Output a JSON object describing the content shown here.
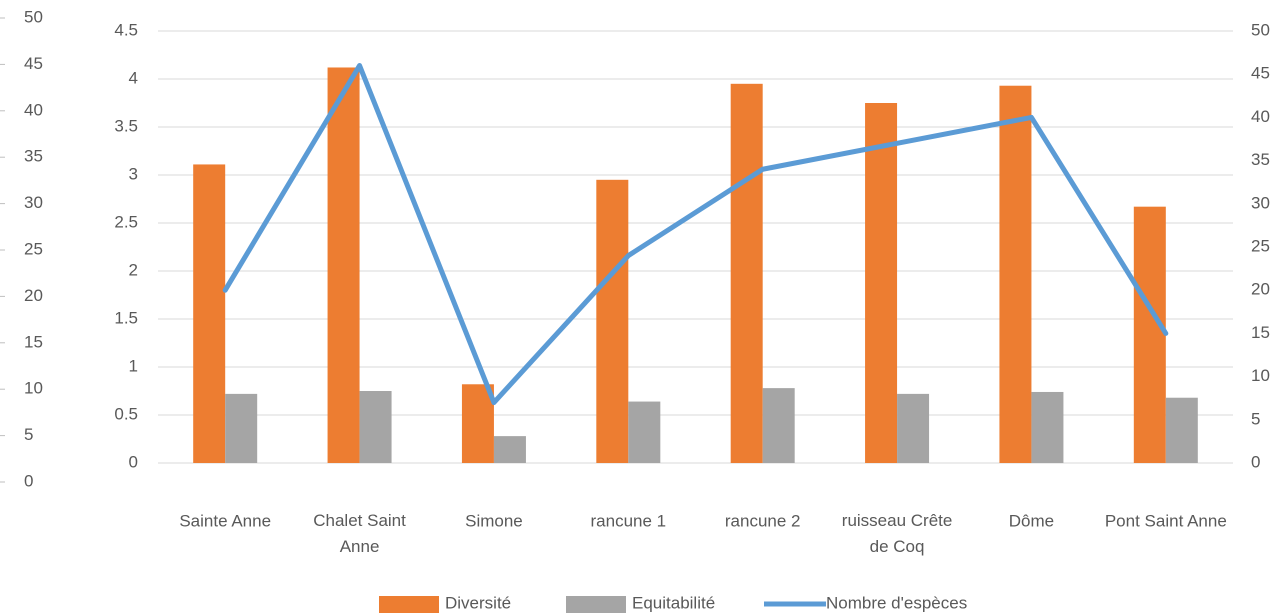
{
  "chart_data": {
    "type": "bar",
    "categories": [
      "Sainte Anne",
      "Chalet Saint Anne",
      "Simone",
      "rancune 1",
      "rancune 2",
      "ruisseau Crête de Coq",
      "Dôme",
      "Pont Saint Anne"
    ],
    "series": [
      {
        "name": "Diversité",
        "color": "#ed7d31",
        "type": "bar",
        "values": [
          3.11,
          4.12,
          0.82,
          2.95,
          3.95,
          3.75,
          3.93,
          2.67
        ]
      },
      {
        "name": "Equitabilité",
        "color": "#a5a5a5",
        "type": "bar",
        "values": [
          0.72,
          0.75,
          0.28,
          0.64,
          0.78,
          0.72,
          0.74,
          0.68
        ]
      },
      {
        "name": "Nombre d'espèces",
        "color": "#5b9bd5",
        "type": "line",
        "axis": "y2",
        "values": [
          20,
          46,
          7,
          24,
          34,
          37,
          40,
          15
        ]
      }
    ],
    "ylim": [
      0,
      4.5
    ],
    "yticks": [
      0,
      0.5,
      1,
      1.5,
      2,
      2.5,
      3,
      3.5,
      4,
      4.5
    ],
    "y2lim": [
      0,
      50
    ],
    "y2ticks": [
      0,
      5,
      10,
      15,
      20,
      25,
      30,
      35,
      40,
      45,
      50
    ],
    "y3lim": [
      0,
      50
    ],
    "y3ticks": [
      0,
      5,
      10,
      15,
      20,
      25,
      30,
      35,
      40,
      45,
      50
    ],
    "grid": true,
    "legend": "bottom"
  }
}
